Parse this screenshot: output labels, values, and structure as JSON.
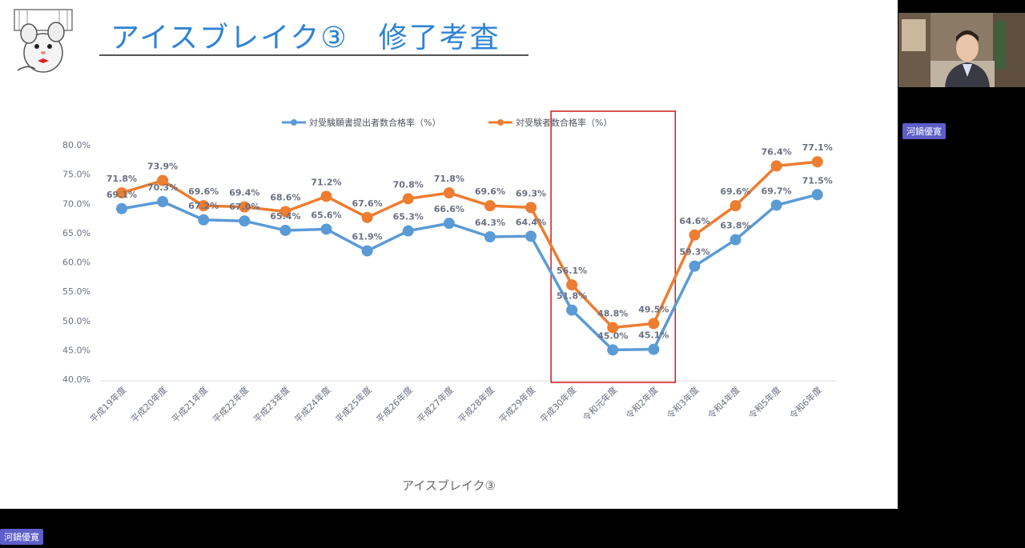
{
  "slide": {
    "title": "アイスブレイク③　修了考査",
    "caption": "アイスブレイク③"
  },
  "participants": {
    "video_name": "河鍋優寛",
    "self_name": "河鍋優寛"
  },
  "colors": {
    "title": "#2f83d6",
    "series_blue": "#5b9bd5",
    "series_orange": "#ed7d31",
    "highlight_box": "#d11a1a",
    "name_badge": "#5e5ec8"
  },
  "chart_data": {
    "type": "line",
    "categories": [
      "平成19年度",
      "平成20年度",
      "平成21年度",
      "平成22年度",
      "平成23年度",
      "平成24年度",
      "平成25年度",
      "平成26年度",
      "平成27年度",
      "平成28年度",
      "平成29年度",
      "平成30年度",
      "令和元年度",
      "令和2年度",
      "令和3年度",
      "令和4年度",
      "令和5年度",
      "令和6年度"
    ],
    "series": [
      {
        "name": "対受験願書提出者数合格率（%）",
        "color": "#5b9bd5",
        "values": [
          69.1,
          70.3,
          67.2,
          67.0,
          65.4,
          65.6,
          61.9,
          65.3,
          66.6,
          64.3,
          64.4,
          51.8,
          45.0,
          45.1,
          59.3,
          63.8,
          69.7,
          71.5
        ],
        "labels": [
          "69.1%",
          "70.3%",
          "67.2%",
          "67.0%",
          "65.4%",
          "65.6%",
          "61.9%",
          "65.3%",
          "66.6%",
          "64.3%",
          "64.4%",
          "51.8%",
          "45.0%",
          "45.1%",
          "59.3%",
          "63.8%",
          "69.7%",
          "71.5%"
        ]
      },
      {
        "name": "対受験者数合格率（%）",
        "color": "#ed7d31",
        "values": [
          71.8,
          73.9,
          69.6,
          69.4,
          68.6,
          71.2,
          67.6,
          70.8,
          71.8,
          69.6,
          69.3,
          56.1,
          48.8,
          49.5,
          64.6,
          69.6,
          76.4,
          77.1
        ],
        "labels": [
          "71.8%",
          "73.9%",
          "69.6%",
          "69.4%",
          "68.6%",
          "71.2%",
          "67.6%",
          "70.8%",
          "71.8%",
          "69.6%",
          "69.3%",
          "56.1%",
          "48.8%",
          "49.5%",
          "64.6%",
          "69.6%",
          "76.4%",
          "77.1%"
        ]
      }
    ],
    "y_ticks": [
      "40.0%",
      "45.0%",
      "50.0%",
      "55.0%",
      "60.0%",
      "65.0%",
      "70.0%",
      "75.0%",
      "80.0%"
    ],
    "ylim": [
      40,
      80
    ],
    "legend_position": "top",
    "grid": false,
    "highlight_range": [
      "平成30年度",
      "令和2年度"
    ]
  }
}
